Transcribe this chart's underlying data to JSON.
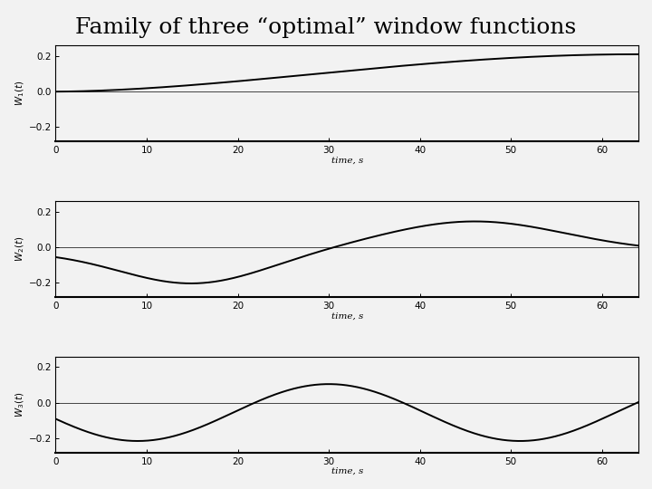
{
  "title": "Family of three “optimal” window functions",
  "xlabel": "time, s",
  "ylabel1": "$W_1(t)$",
  "ylabel2": "$W_2(t)$",
  "ylabel3": "$W_3(t)$",
  "xlim": [
    0,
    64
  ],
  "ylim": [
    -0.28,
    0.25
  ],
  "yticks": [
    -0.2,
    0,
    0.2
  ],
  "xticks": [
    0,
    10,
    20,
    30,
    40,
    50,
    60
  ],
  "line_color": "#000000",
  "line_width": 1.4,
  "bg_color": "#f0f0f0",
  "title_fontsize": 18,
  "label_fontsize": 7.5,
  "tick_fontsize": 7.5
}
